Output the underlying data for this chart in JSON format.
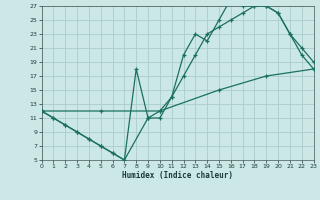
{
  "xlabel": "Humidex (Indice chaleur)",
  "background_color": "#cce8e6",
  "grid_color": "#aaccca",
  "line_color": "#1a7060",
  "xlim": [
    0,
    23
  ],
  "ylim": [
    5,
    27
  ],
  "yticks": [
    5,
    7,
    9,
    11,
    13,
    15,
    17,
    19,
    21,
    23,
    25,
    27
  ],
  "xticks": [
    0,
    1,
    2,
    3,
    4,
    5,
    6,
    7,
    8,
    9,
    10,
    11,
    12,
    13,
    14,
    15,
    16,
    17,
    18,
    19,
    20,
    21,
    22,
    23
  ],
  "line1_x": [
    0,
    1,
    2,
    3,
    4,
    5,
    6,
    7,
    8,
    9,
    10,
    11,
    12,
    13,
    14,
    15,
    16,
    17,
    18,
    19,
    20,
    21,
    22,
    23
  ],
  "line1_y": [
    12,
    11,
    10,
    9,
    8,
    7,
    6,
    5,
    18,
    11,
    11,
    14,
    20,
    23,
    22,
    25,
    28,
    27,
    27,
    27,
    26,
    23,
    21,
    19
  ],
  "line2_x": [
    0,
    1,
    2,
    3,
    4,
    5,
    6,
    7,
    9,
    10,
    11,
    12,
    13,
    14,
    15,
    16,
    17,
    18,
    19,
    20,
    21,
    22,
    23
  ],
  "line2_y": [
    12,
    11,
    10,
    9,
    8,
    7,
    6,
    5,
    11,
    12,
    14,
    17,
    20,
    23,
    24,
    25,
    26,
    27,
    27,
    26,
    23,
    20,
    18
  ],
  "line3_x": [
    0,
    5,
    10,
    15,
    19,
    23
  ],
  "line3_y": [
    12,
    12,
    12,
    15,
    17,
    18
  ]
}
